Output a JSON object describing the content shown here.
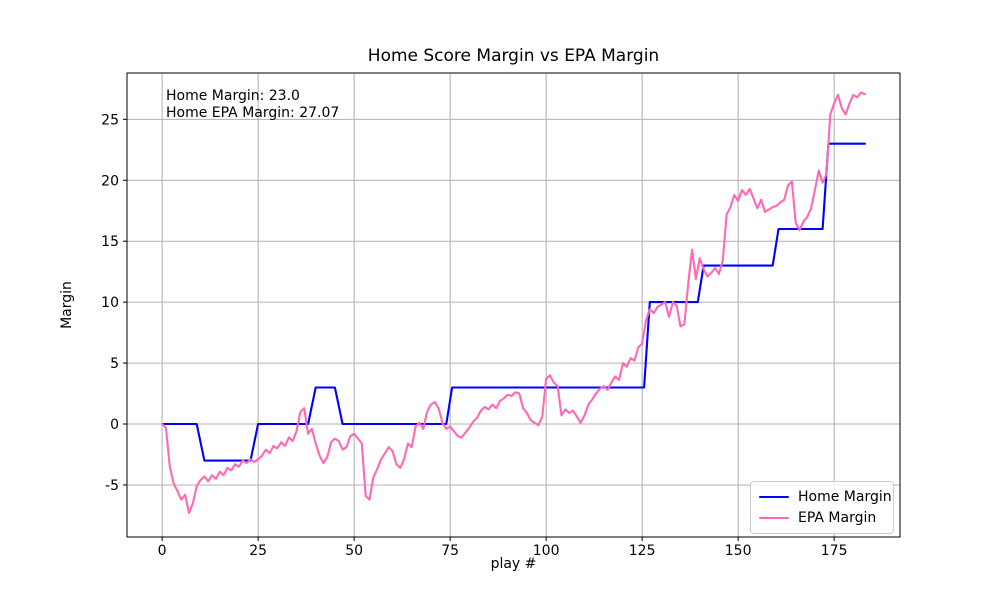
{
  "chart_data": {
    "type": "line",
    "title": "Home Score Margin vs EPA Margin",
    "xlabel": "play #",
    "ylabel": "Margin",
    "xlim": [
      -9.15,
      192.15
    ],
    "ylim": [
      -9.27,
      28.8
    ],
    "xticks": [
      0,
      25,
      50,
      75,
      100,
      125,
      150,
      175
    ],
    "yticks": [
      -5,
      0,
      5,
      10,
      15,
      20,
      25
    ],
    "grid": true,
    "grid_color": "#b0b0b0",
    "axis_color": "#000000",
    "legend_position": "lower right",
    "annotation": {
      "lines": [
        "Home Margin: 23.0",
        "Home EPA Margin: 27.07"
      ]
    },
    "series": [
      {
        "name": "Home Margin",
        "color": "#0000ff",
        "points": [
          [
            0,
            0
          ],
          [
            9,
            0
          ],
          [
            11,
            -3
          ],
          [
            23,
            -3
          ],
          [
            25,
            0
          ],
          [
            38,
            0
          ],
          [
            40,
            3
          ],
          [
            45,
            3
          ],
          [
            47,
            0
          ],
          [
            74,
            0
          ],
          [
            75.5,
            3
          ],
          [
            125.5,
            3
          ],
          [
            127,
            10
          ],
          [
            139.5,
            10
          ],
          [
            141,
            13
          ],
          [
            159,
            13
          ],
          [
            160.5,
            16
          ],
          [
            172,
            16
          ],
          [
            173.5,
            23
          ],
          [
            183,
            23
          ]
        ]
      },
      {
        "name": "EPA Margin",
        "color": "#ff69b4",
        "points": [
          [
            0,
            0
          ],
          [
            1,
            -0.3
          ],
          [
            2,
            -3.5
          ],
          [
            3,
            -4.9
          ],
          [
            4,
            -5.5
          ],
          [
            5,
            -6.2
          ],
          [
            6,
            -5.8
          ],
          [
            7,
            -7.3
          ],
          [
            8,
            -6.5
          ],
          [
            9,
            -5.1
          ],
          [
            10,
            -4.6
          ],
          [
            11,
            -4.3
          ],
          [
            12,
            -4.7
          ],
          [
            13,
            -4.2
          ],
          [
            14,
            -4.5
          ],
          [
            15,
            -3.9
          ],
          [
            16,
            -4.2
          ],
          [
            17,
            -3.6
          ],
          [
            18,
            -3.8
          ],
          [
            19,
            -3.3
          ],
          [
            20,
            -3.5
          ],
          [
            21,
            -3.0
          ],
          [
            22,
            -3.2
          ],
          [
            23,
            -2.9
          ],
          [
            24,
            -3.1
          ],
          [
            25,
            -2.9
          ],
          [
            26,
            -2.6
          ],
          [
            27,
            -2.1
          ],
          [
            28,
            -2.4
          ],
          [
            29,
            -1.8
          ],
          [
            30,
            -2.0
          ],
          [
            31,
            -1.5
          ],
          [
            32,
            -1.8
          ],
          [
            33,
            -1.1
          ],
          [
            34,
            -1.4
          ],
          [
            35,
            -0.6
          ],
          [
            36,
            1.0
          ],
          [
            37,
            1.3
          ],
          [
            38,
            -0.8
          ],
          [
            39,
            -0.4
          ],
          [
            40,
            -1.6
          ],
          [
            41,
            -2.6
          ],
          [
            42,
            -3.2
          ],
          [
            43,
            -2.7
          ],
          [
            44,
            -1.5
          ],
          [
            45,
            -1.2
          ],
          [
            46,
            -1.4
          ],
          [
            47,
            -2.1
          ],
          [
            48,
            -1.9
          ],
          [
            49,
            -1.0
          ],
          [
            50,
            -0.8
          ],
          [
            51,
            -1.2
          ],
          [
            52,
            -1.6
          ],
          [
            53,
            -5.9
          ],
          [
            54,
            -6.2
          ],
          [
            55,
            -4.4
          ],
          [
            56,
            -3.7
          ],
          [
            57,
            -2.9
          ],
          [
            58,
            -2.4
          ],
          [
            59,
            -1.9
          ],
          [
            60,
            -2.2
          ],
          [
            61,
            -3.3
          ],
          [
            62,
            -3.6
          ],
          [
            63,
            -2.9
          ],
          [
            64,
            -1.6
          ],
          [
            65,
            -1.9
          ],
          [
            66,
            -0.2
          ],
          [
            67,
            0.1
          ],
          [
            68,
            -0.4
          ],
          [
            69,
            1.0
          ],
          [
            70,
            1.6
          ],
          [
            71,
            1.8
          ],
          [
            72,
            1.3
          ],
          [
            73,
            0.1
          ],
          [
            74,
            -0.4
          ],
          [
            75,
            -0.2
          ],
          [
            76,
            -0.6
          ],
          [
            77,
            -1.0
          ],
          [
            78,
            -1.1
          ],
          [
            79,
            -0.7
          ],
          [
            80,
            -0.3
          ],
          [
            81,
            0.2
          ],
          [
            82,
            0.5
          ],
          [
            83,
            1.1
          ],
          [
            84,
            1.4
          ],
          [
            85,
            1.2
          ],
          [
            86,
            1.6
          ],
          [
            87,
            1.3
          ],
          [
            88,
            1.9
          ],
          [
            89,
            2.1
          ],
          [
            90,
            2.4
          ],
          [
            91,
            2.3
          ],
          [
            92,
            2.6
          ],
          [
            93,
            2.5
          ],
          [
            94,
            1.3
          ],
          [
            95,
            0.9
          ],
          [
            96,
            0.3
          ],
          [
            97,
            0.1
          ],
          [
            98,
            -0.1
          ],
          [
            99,
            0.6
          ],
          [
            100,
            3.7
          ],
          [
            101,
            4.0
          ],
          [
            102,
            3.4
          ],
          [
            103,
            3.1
          ],
          [
            104,
            0.7
          ],
          [
            105,
            1.2
          ],
          [
            106,
            0.9
          ],
          [
            107,
            1.1
          ],
          [
            108,
            0.6
          ],
          [
            109,
            0.1
          ],
          [
            110,
            0.7
          ],
          [
            111,
            1.6
          ],
          [
            112,
            2.0
          ],
          [
            113,
            2.5
          ],
          [
            114,
            2.9
          ],
          [
            115,
            3.1
          ],
          [
            116,
            2.8
          ],
          [
            117,
            3.4
          ],
          [
            118,
            3.9
          ],
          [
            119,
            3.6
          ],
          [
            120,
            5.0
          ],
          [
            121,
            4.7
          ],
          [
            122,
            5.4
          ],
          [
            123,
            5.2
          ],
          [
            124,
            6.3
          ],
          [
            125,
            6.6
          ],
          [
            126,
            8.5
          ],
          [
            127,
            9.4
          ],
          [
            128,
            9.1
          ],
          [
            129,
            9.6
          ],
          [
            130,
            9.8
          ],
          [
            131,
            10.0
          ],
          [
            132,
            8.8
          ],
          [
            133,
            10.0
          ],
          [
            134,
            9.7
          ],
          [
            135,
            8.0
          ],
          [
            136,
            8.2
          ],
          [
            137,
            11.5
          ],
          [
            138,
            14.3
          ],
          [
            139,
            11.9
          ],
          [
            140,
            13.6
          ],
          [
            141,
            12.7
          ],
          [
            142,
            12.1
          ],
          [
            143,
            12.4
          ],
          [
            144,
            12.8
          ],
          [
            145,
            12.3
          ],
          [
            146,
            13.4
          ],
          [
            147,
            17.2
          ],
          [
            148,
            17.8
          ],
          [
            149,
            18.8
          ],
          [
            150,
            18.3
          ],
          [
            151,
            19.2
          ],
          [
            152,
            18.8
          ],
          [
            153,
            19.3
          ],
          [
            154,
            18.5
          ],
          [
            155,
            17.7
          ],
          [
            156,
            18.4
          ],
          [
            157,
            17.4
          ],
          [
            158,
            17.6
          ],
          [
            159,
            17.8
          ],
          [
            160,
            17.9
          ],
          [
            161,
            18.2
          ],
          [
            162,
            18.4
          ],
          [
            163,
            19.6
          ],
          [
            164,
            19.9
          ],
          [
            165,
            16.5
          ],
          [
            166,
            15.9
          ],
          [
            167,
            16.6
          ],
          [
            168,
            17.0
          ],
          [
            169,
            17.7
          ],
          [
            170,
            19.2
          ],
          [
            171,
            20.8
          ],
          [
            172,
            19.8
          ],
          [
            173,
            20.5
          ],
          [
            174,
            25.4
          ],
          [
            175,
            26.3
          ],
          [
            176,
            27.0
          ],
          [
            177,
            25.9
          ],
          [
            178,
            25.4
          ],
          [
            179,
            26.3
          ],
          [
            180,
            27.0
          ],
          [
            181,
            26.8
          ],
          [
            182,
            27.2
          ],
          [
            183,
            27.07
          ]
        ]
      }
    ]
  }
}
